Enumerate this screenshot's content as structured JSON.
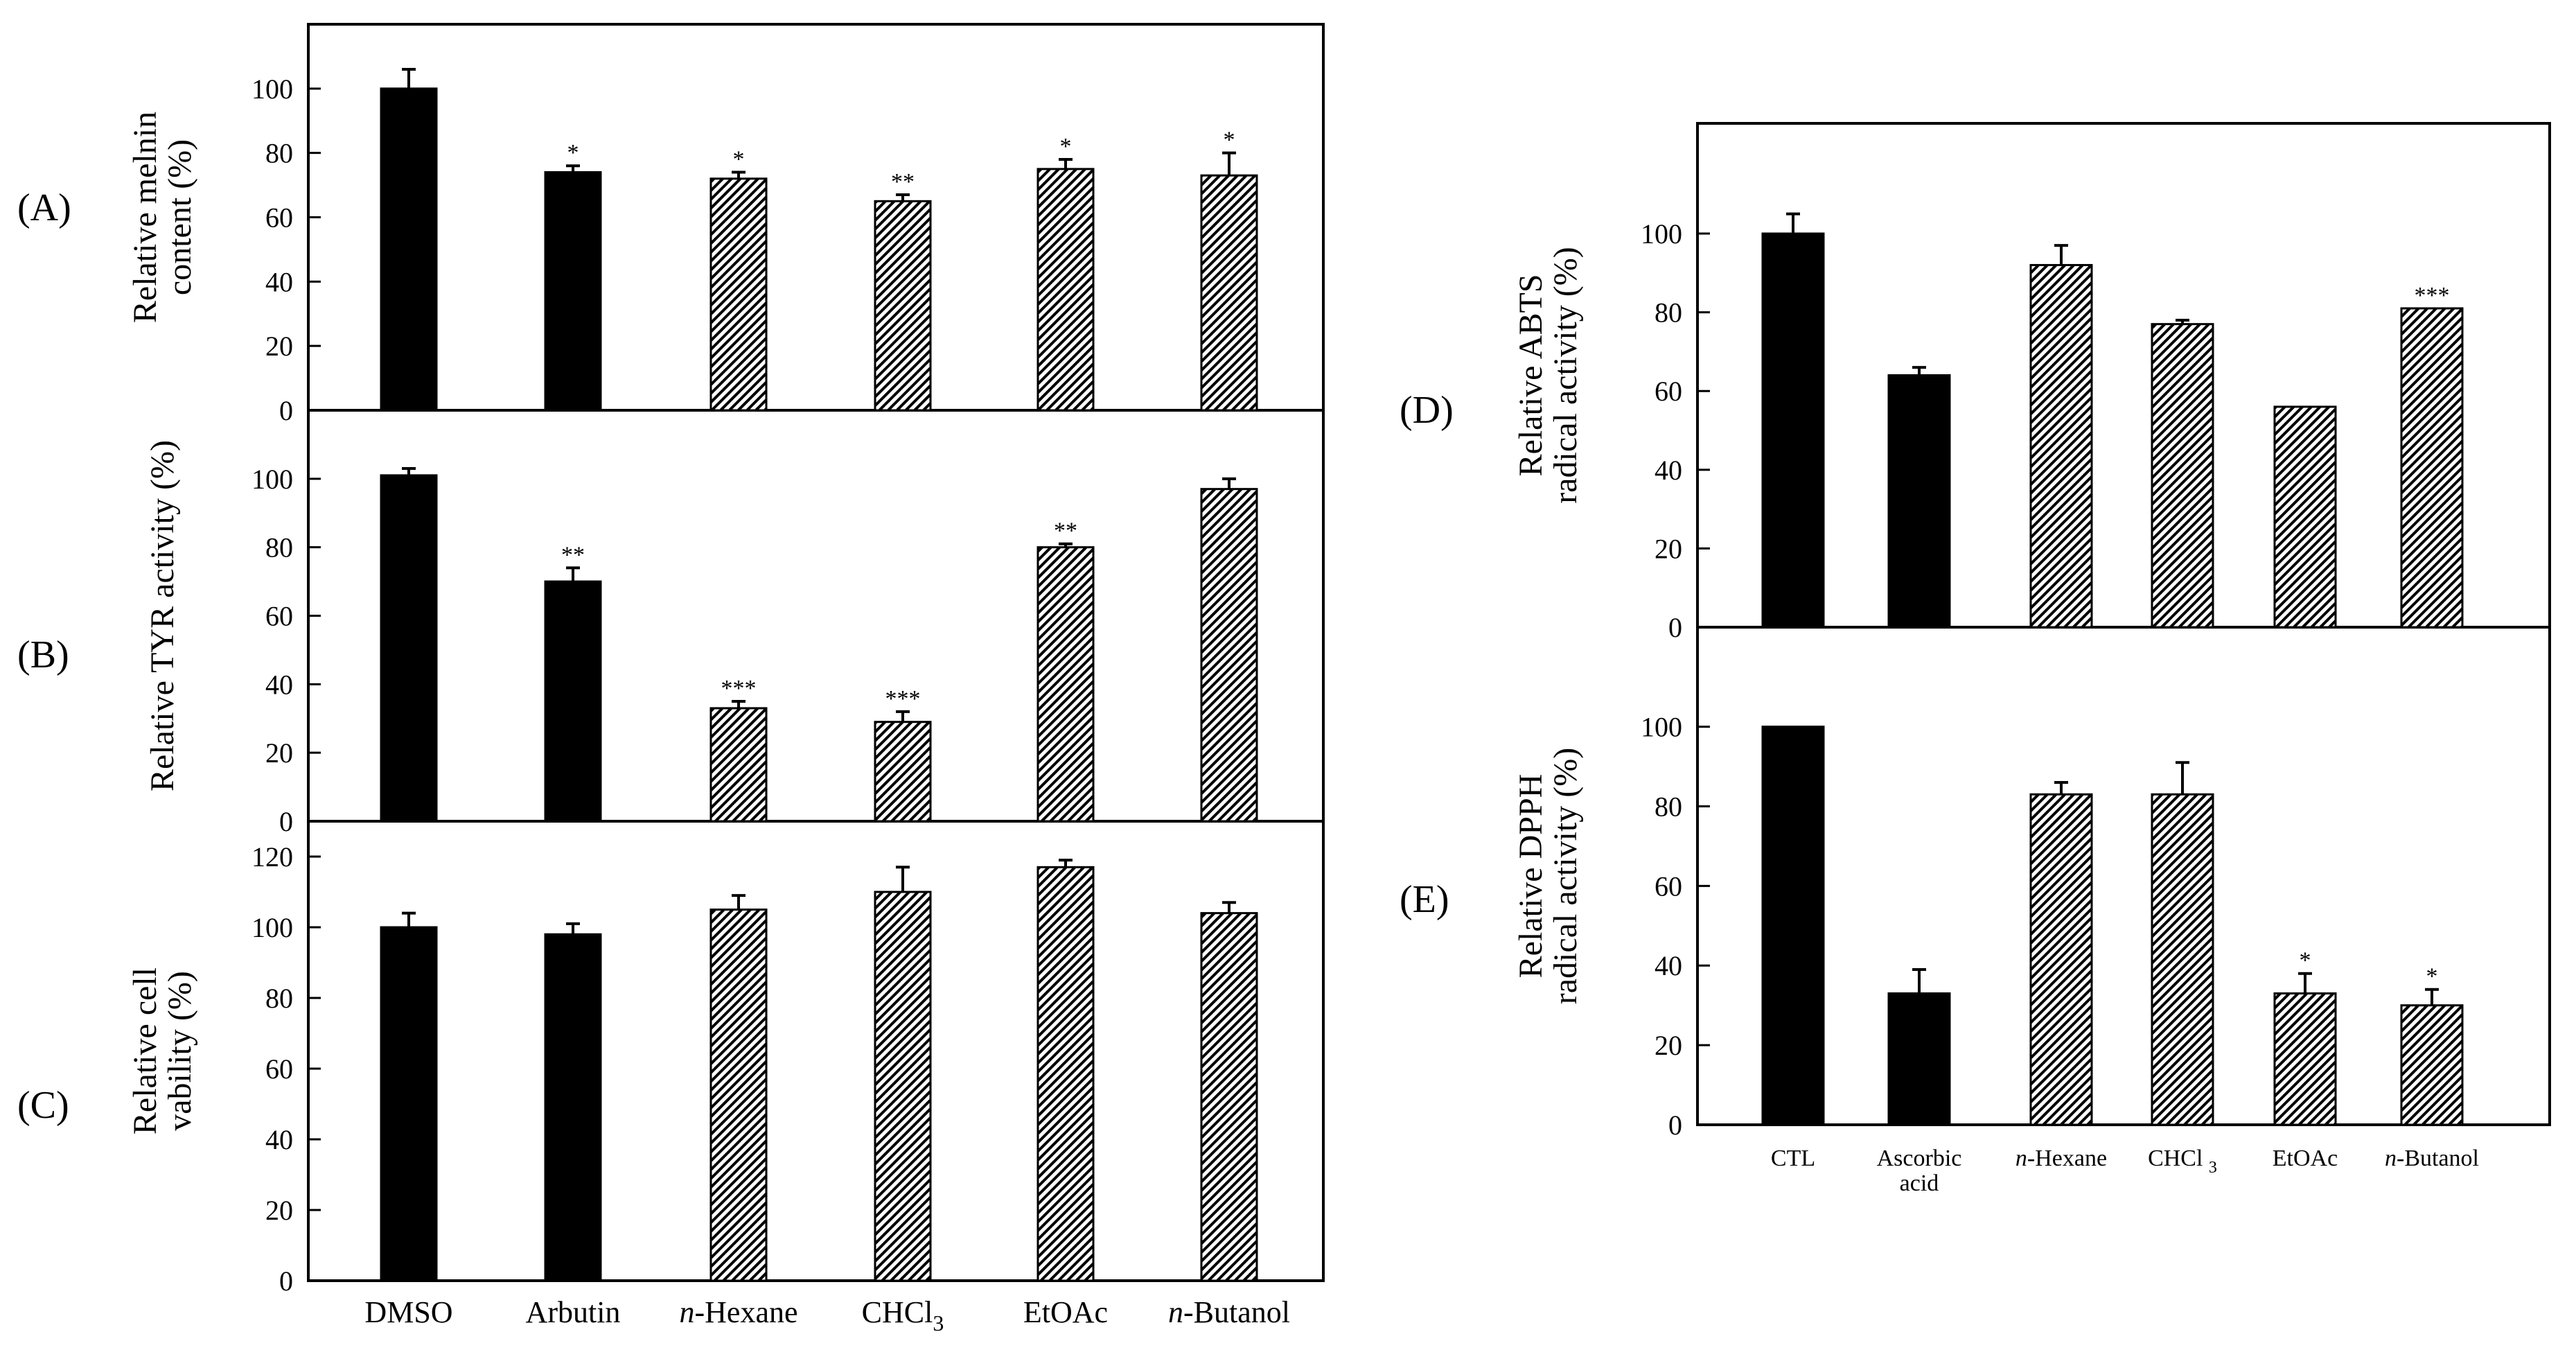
{
  "chart_data": [
    {
      "id": "A",
      "type": "bar",
      "panel_label": "(A)",
      "ylabel_lines": [
        "Relative melnin",
        "content (%)"
      ],
      "ylim": [
        0,
        120
      ],
      "yticks": [
        0,
        20,
        40,
        60,
        80,
        100
      ],
      "categories": [
        "DMSO",
        "Arbutin",
        "n-Hexane",
        "CHCl3",
        "EtOAc",
        "n-Butanol"
      ],
      "values": [
        100,
        74,
        72,
        65,
        75,
        73
      ],
      "errors": [
        6,
        2,
        2,
        2,
        3,
        7
      ],
      "significance": [
        "",
        "*",
        "*",
        "**",
        "*",
        "*"
      ],
      "fills": [
        "solid",
        "solid",
        "hatched",
        "hatched",
        "hatched",
        "hatched"
      ]
    },
    {
      "id": "B",
      "type": "bar",
      "panel_label": "(B)",
      "ylabel_lines": [
        "Relative TYR activity (%)"
      ],
      "ylim": [
        0,
        120
      ],
      "yticks": [
        0,
        20,
        40,
        60,
        80,
        100
      ],
      "categories": [
        "DMSO",
        "Arbutin",
        "n-Hexane",
        "CHCl3",
        "EtOAc",
        "n-Butanol"
      ],
      "values": [
        101,
        70,
        33,
        29,
        80,
        97
      ],
      "errors": [
        2,
        4,
        2,
        3,
        1,
        3
      ],
      "significance": [
        "",
        "**",
        "***",
        "***",
        "**",
        ""
      ],
      "fills": [
        "solid",
        "solid",
        "hatched",
        "hatched",
        "hatched",
        "hatched"
      ]
    },
    {
      "id": "C",
      "type": "bar",
      "panel_label": "(C)",
      "ylabel_lines": [
        "Relative cell",
        "vability (%)"
      ],
      "ylim": [
        0,
        130
      ],
      "yticks": [
        0,
        20,
        40,
        60,
        80,
        100,
        120
      ],
      "categories": [
        "DMSO",
        "Arbutin",
        "n-Hexane",
        "CHCl3",
        "EtOAc",
        "n-Butanol"
      ],
      "values": [
        100,
        98,
        105,
        110,
        117,
        104
      ],
      "errors": [
        4,
        3,
        4,
        7,
        2,
        3
      ],
      "significance": [
        "",
        "",
        "",
        "",
        "",
        ""
      ],
      "fills": [
        "solid",
        "solid",
        "hatched",
        "hatched",
        "hatched",
        "hatched"
      ]
    },
    {
      "id": "D",
      "type": "bar",
      "panel_label": "(D)",
      "ylabel_lines": [
        "Relative ABTS",
        "radical activity (%)"
      ],
      "ylim": [
        0,
        128
      ],
      "yticks": [
        0,
        20,
        40,
        60,
        80,
        100
      ],
      "categories": [
        "CTL",
        "Ascorbic acid",
        "n-Hexane",
        "CHCl3",
        "EtOAc",
        "n-Butanol"
      ],
      "values": [
        100,
        64,
        92,
        77,
        56,
        81
      ],
      "errors": [
        5,
        2,
        5,
        1,
        0,
        0
      ],
      "significance": [
        "",
        "",
        "",
        "",
        "",
        "***"
      ],
      "fills": [
        "solid",
        "solid",
        "hatched",
        "hatched",
        "hatched",
        "hatched"
      ]
    },
    {
      "id": "E",
      "type": "bar",
      "panel_label": "(E)",
      "ylabel_lines": [
        "Relative DPPH",
        "radical activity (%)"
      ],
      "ylim": [
        0,
        125
      ],
      "yticks": [
        0,
        20,
        40,
        60,
        80,
        100
      ],
      "categories": [
        "CTL",
        "Ascorbic acid",
        "n-Hexane",
        "CHCl3",
        "EtOAc",
        "n-Butanol"
      ],
      "values": [
        100,
        33,
        83,
        83,
        33,
        30
      ],
      "errors": [
        0,
        6,
        3,
        8,
        5,
        4
      ],
      "significance": [
        "",
        "",
        "",
        "",
        "*",
        "*"
      ],
      "fills": [
        "solid",
        "solid",
        "hatched",
        "hatched",
        "hatched",
        "hatched"
      ]
    }
  ],
  "left_xlabels": [
    {
      "text": "DMSO",
      "italic": "",
      "sub": ""
    },
    {
      "text": "Arbutin",
      "italic": "",
      "sub": ""
    },
    {
      "text": "-Hexane",
      "italic": "n",
      "sub": ""
    },
    {
      "text": "CHCl",
      "italic": "",
      "sub": "3"
    },
    {
      "text": "EtOAc",
      "italic": "",
      "sub": ""
    },
    {
      "text": "-Butanol",
      "italic": "n",
      "sub": ""
    }
  ],
  "right_xlabels": [
    {
      "lines": [
        "CTL"
      ],
      "italic": "",
      "sub": ""
    },
    {
      "lines": [
        "Ascorbic",
        "acid"
      ],
      "italic": "",
      "sub": ""
    },
    {
      "lines": [
        "-Hexane"
      ],
      "italic": "n",
      "sub": ""
    },
    {
      "lines": [
        "CHCl "
      ],
      "italic": "",
      "sub": "3"
    },
    {
      "lines": [
        "EtOAc"
      ],
      "italic": "",
      "sub": ""
    },
    {
      "lines": [
        "-Butanol"
      ],
      "italic": "n",
      "sub": ""
    }
  ]
}
